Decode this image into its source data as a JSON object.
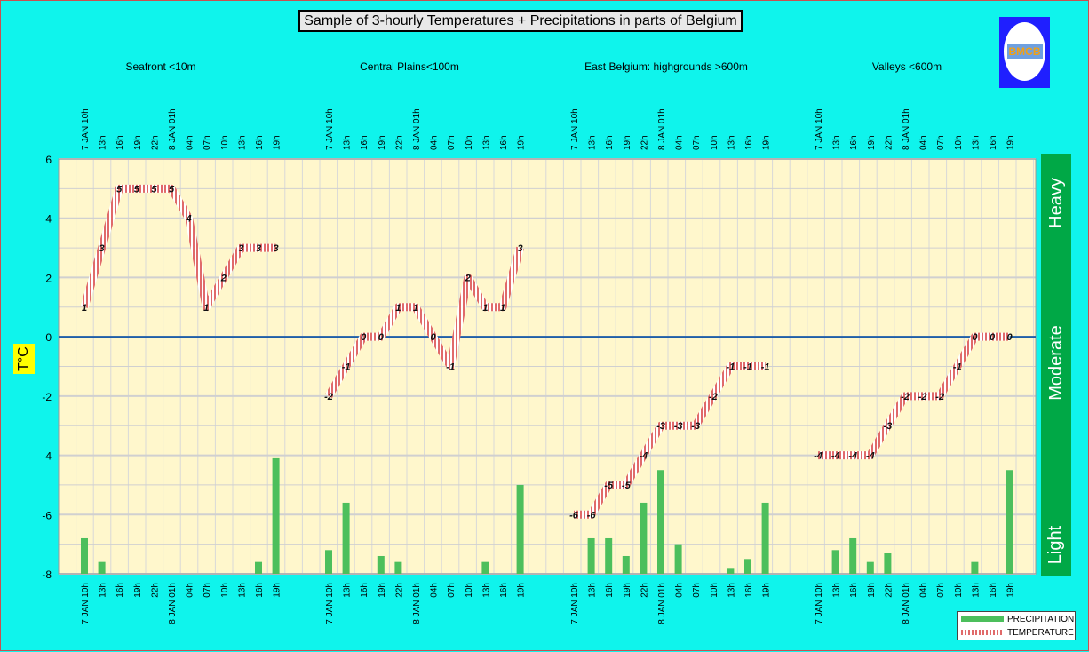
{
  "title": "Sample of 3-hourly Temperatures + Precipitations in parts of Belgium",
  "logo_text": "BMCB",
  "ylabel": "T°C",
  "intensity": {
    "heavy": "Heavy",
    "moderate": "Moderate",
    "light": "Light"
  },
  "legend": {
    "precipitation": "PRECIPITATION",
    "temperature": "TEMPERATURE"
  },
  "colors": {
    "background": "#0ff4ec",
    "plot": "#fff7cc",
    "precipitation": "#4cbf5c",
    "temperature": "#e06a6a",
    "zero_line": "#1f5fa8",
    "intensity_bar": "#00a846",
    "label_box": "#ffff00"
  },
  "chart_data": {
    "type": "line",
    "ylim": [
      -8,
      6
    ],
    "yticks": [
      -8,
      -6,
      -4,
      -2,
      0,
      2,
      4,
      6
    ],
    "grid": true,
    "legend_position": "bottom-right",
    "time_labels": [
      "7 JAN 10h",
      "13h",
      "16h",
      "19h",
      "22h",
      "8 JAN 01h",
      "04h",
      "07h",
      "10h",
      "13h",
      "16h",
      "19h"
    ],
    "groups": [
      {
        "name": "Seafront <10m",
        "temperature": [
          1,
          3,
          5,
          5,
          5,
          5,
          4,
          1,
          2,
          3,
          3,
          3
        ],
        "precipitation": [
          -6.8,
          -7.6,
          -8,
          -8,
          -8,
          -8,
          -8,
          -8,
          -8,
          -8,
          -7.6,
          -4.1
        ]
      },
      {
        "name": "Central Plains<100m",
        "temperature": [
          -2,
          -1,
          0,
          0,
          1,
          1,
          0,
          -1,
          2,
          1,
          1,
          3
        ],
        "precipitation": [
          -7.2,
          -5.6,
          -8,
          -7.4,
          -7.6,
          -8,
          -8,
          -8,
          -8,
          -7.6,
          -8,
          -5.0
        ]
      },
      {
        "name": "East Belgium:     highgrounds >600m",
        "temperature": [
          -6,
          -6,
          -5,
          -5,
          -4,
          -3,
          -3,
          -3,
          -2,
          -1,
          -1,
          -1
        ],
        "precipitation": [
          -8,
          -6.8,
          -6.8,
          -7.4,
          -5.6,
          -4.5,
          -7.0,
          -8,
          -8,
          -7.8,
          -7.5,
          -5.6
        ]
      },
      {
        "name": "Valleys <600m",
        "temperature": [
          -4,
          -4,
          -4,
          -4,
          -3,
          -2,
          -2,
          -2,
          -1,
          0,
          0,
          0
        ],
        "precipitation": [
          -8,
          -7.2,
          -6.8,
          -7.6,
          -7.3,
          -8,
          -8,
          -8,
          -8,
          -7.6,
          -8,
          -4.5
        ]
      }
    ]
  }
}
